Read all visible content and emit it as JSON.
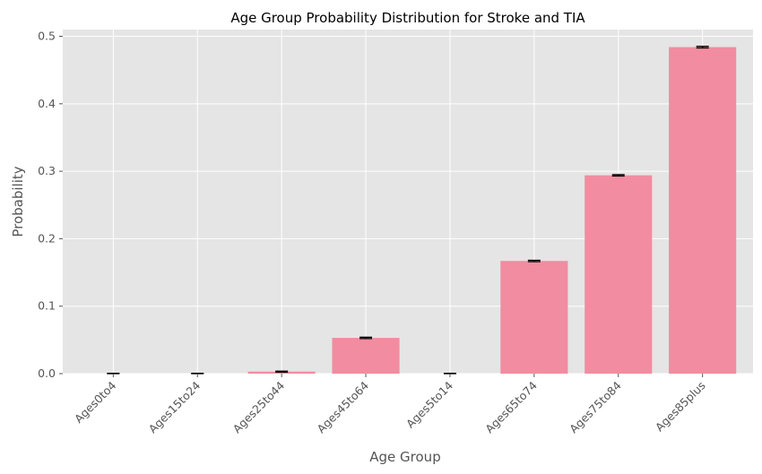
{
  "chart_data": {
    "type": "bar",
    "title": "Age Group Probability Distribution for Stroke and TIA",
    "xlabel": "Age Group",
    "ylabel": "Probability",
    "categories": [
      "Ages0to4",
      "Ages15to24",
      "Ages25to44",
      "Ages45to64",
      "Ages5to14",
      "Ages65to74",
      "Ages75to84",
      "Ages85plus"
    ],
    "values": [
      0.0,
      0.0,
      0.003,
      0.053,
      0.0,
      0.167,
      0.294,
      0.484
    ],
    "error": [
      0.0005,
      0.0005,
      0.0007,
      0.001,
      0.0005,
      0.001,
      0.001,
      0.0012
    ],
    "ylim": [
      0,
      0.51
    ],
    "yticks": [
      "0.0",
      "0.1",
      "0.2",
      "0.3",
      "0.4",
      "0.5"
    ],
    "ytick_values": [
      0,
      0.1,
      0.2,
      0.3,
      0.4,
      0.5
    ],
    "grid": true,
    "bar_color": "#f28ca0",
    "background": "#e5e5e5",
    "grid_color": "#ffffff",
    "errorbar_color": "#000000"
  }
}
